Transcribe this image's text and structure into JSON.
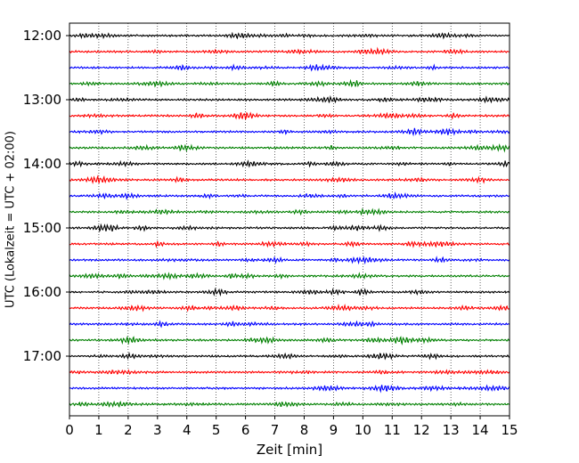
{
  "chart_data": {
    "type": "line",
    "title": "",
    "xlabel": "Zeit  [min]",
    "ylabel": "UTC (Lokalzeit = UTC + 02:00)",
    "xlim": [
      0,
      15
    ],
    "x_ticks": [
      "0",
      "1",
      "2",
      "3",
      "4",
      "5",
      "6",
      "7",
      "8",
      "9",
      "10",
      "11",
      "12",
      "13",
      "14",
      "15"
    ],
    "y_ticks": [
      "12:00",
      "13:00",
      "14:00",
      "15:00",
      "16:00",
      "17:00"
    ],
    "trace_interval_min": 15,
    "first_trace": "12:00",
    "trace_count": 24,
    "trace_colors": [
      "#000000",
      "#ff0000",
      "#0000ff",
      "#008000"
    ],
    "grid": "vertical dotted at each minute",
    "series": [
      {
        "start": "12:00",
        "color": "#000000"
      },
      {
        "start": "12:15",
        "color": "#ff0000"
      },
      {
        "start": "12:30",
        "color": "#0000ff"
      },
      {
        "start": "12:45",
        "color": "#008000"
      },
      {
        "start": "13:00",
        "color": "#000000"
      },
      {
        "start": "13:15",
        "color": "#ff0000"
      },
      {
        "start": "13:30",
        "color": "#0000ff"
      },
      {
        "start": "13:45",
        "color": "#008000"
      },
      {
        "start": "14:00",
        "color": "#000000"
      },
      {
        "start": "14:15",
        "color": "#ff0000"
      },
      {
        "start": "14:30",
        "color": "#0000ff"
      },
      {
        "start": "14:45",
        "color": "#008000"
      },
      {
        "start": "15:00",
        "color": "#000000"
      },
      {
        "start": "15:15",
        "color": "#ff0000"
      },
      {
        "start": "15:30",
        "color": "#0000ff"
      },
      {
        "start": "15:45",
        "color": "#008000"
      },
      {
        "start": "16:00",
        "color": "#000000"
      },
      {
        "start": "16:15",
        "color": "#ff0000"
      },
      {
        "start": "16:30",
        "color": "#0000ff"
      },
      {
        "start": "16:45",
        "color": "#008000"
      },
      {
        "start": "17:00",
        "color": "#000000"
      },
      {
        "start": "17:15",
        "color": "#ff0000"
      },
      {
        "start": "17:30",
        "color": "#0000ff"
      },
      {
        "start": "17:45",
        "color": "#008000"
      }
    ]
  }
}
